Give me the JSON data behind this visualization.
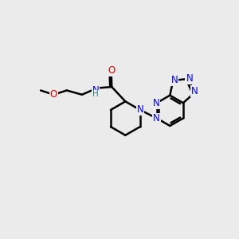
{
  "background_color": "#ebebeb",
  "bond_color": "#000000",
  "bond_width": 1.8,
  "atom_colors": {
    "N": "#0000ee",
    "O": "#dd0000",
    "NH": "#2a8080",
    "C": "#000000"
  },
  "font_size": 8.5,
  "fig_width": 3.0,
  "fig_height": 3.0,
  "dpi": 100
}
